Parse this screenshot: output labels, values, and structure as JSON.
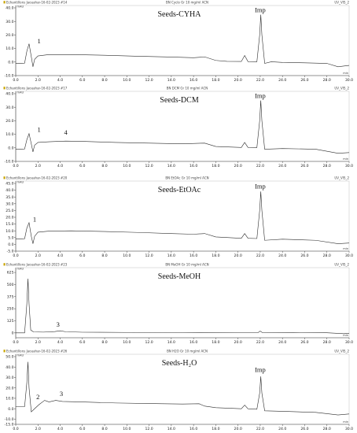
{
  "chart_data": [
    {
      "type": "line",
      "title": "Seeds-CYHA",
      "header_left": "Echantillons Jaouahar-16-02-2023 #14",
      "header_center": "BN Cyclo Gr 10 mg/ml ACN",
      "header_right": "UV_VIS_2",
      "y_unit": "mAU",
      "x_unit": "min",
      "xlim": [
        0.0,
        30.0
      ],
      "ylim": [
        -10.0,
        40.0
      ],
      "y_ticks": [
        "40.0",
        "30.0",
        "20.0",
        "10.0",
        "0.0",
        "-10.0"
      ],
      "x_ticks": [
        "0.0",
        "2.0",
        "4.0",
        "6.0",
        "8.0",
        "10.0",
        "12.0",
        "14.0",
        "16.0",
        "18.0",
        "20.0",
        "22.0",
        "24.0",
        "26.0",
        "28.0",
        "30.0"
      ],
      "baseline": [
        [
          0.0,
          -1.0
        ],
        [
          0.8,
          -0.8
        ],
        [
          1.0,
          8.0
        ],
        [
          1.2,
          13.5
        ],
        [
          1.4,
          4.0
        ],
        [
          1.55,
          -3.5
        ],
        [
          1.7,
          2.0
        ],
        [
          2.0,
          4.5
        ],
        [
          3.0,
          5.5
        ],
        [
          5.0,
          5.5
        ],
        [
          8.0,
          5.0
        ],
        [
          11.0,
          4.3
        ],
        [
          14.0,
          3.7
        ],
        [
          16.0,
          3.2
        ],
        [
          17.0,
          3.8
        ],
        [
          18.0,
          1.2
        ],
        [
          19.0,
          0.5
        ],
        [
          20.3,
          0.4
        ],
        [
          20.6,
          4.8
        ],
        [
          20.9,
          0.3
        ],
        [
          21.7,
          0.2
        ],
        [
          21.95,
          20.0
        ],
        [
          22.05,
          35.0
        ],
        [
          22.15,
          20.0
        ],
        [
          22.4,
          -1.0
        ],
        [
          23.0,
          0.2
        ],
        [
          24.0,
          -0.3
        ],
        [
          26.0,
          -0.6
        ],
        [
          28.0,
          -1.0
        ],
        [
          29.0,
          -3.5
        ],
        [
          30.0,
          -2.5
        ]
      ],
      "labels": [
        {
          "text": "1",
          "x": 2.1,
          "y": 12.0
        },
        {
          "text": "Imp",
          "x": 22.0,
          "y": 35.0
        }
      ]
    },
    {
      "type": "line",
      "title": "Seeds-DCM",
      "header_left": "Echantillons Jaouahar-16-02-2023 #17",
      "header_center": "BN DCM Gr 10 mg/ml ACN",
      "header_right": "UV_VIS_2",
      "y_unit": "mAU",
      "x_unit": "min",
      "xlim": [
        0.0,
        30.0
      ],
      "ylim": [
        -10.0,
        40.0
      ],
      "y_ticks": [
        "40.0",
        "30.0",
        "20.0",
        "10.0",
        "0.0",
        "-10.0"
      ],
      "x_ticks": [
        "0.0",
        "2.0",
        "4.0",
        "6.0",
        "8.0",
        "10.0",
        "12.0",
        "14.0",
        "16.0",
        "18.0",
        "20.0",
        "22.0",
        "24.0",
        "26.0",
        "28.0",
        "30.0"
      ],
      "baseline": [
        [
          0.0,
          -1.0
        ],
        [
          0.8,
          -0.8
        ],
        [
          1.0,
          6.0
        ],
        [
          1.2,
          10.5
        ],
        [
          1.4,
          3.0
        ],
        [
          1.55,
          -3.0
        ],
        [
          1.7,
          2.0
        ],
        [
          2.0,
          4.0
        ],
        [
          3.0,
          4.5
        ],
        [
          4.5,
          5.0
        ],
        [
          6.0,
          4.8
        ],
        [
          9.0,
          4.0
        ],
        [
          12.0,
          3.5
        ],
        [
          15.0,
          3.0
        ],
        [
          17.0,
          3.5
        ],
        [
          18.0,
          1.0
        ],
        [
          20.3,
          0.3
        ],
        [
          20.6,
          4.0
        ],
        [
          20.9,
          0.3
        ],
        [
          21.7,
          0.2
        ],
        [
          21.95,
          20.0
        ],
        [
          22.05,
          35.0
        ],
        [
          22.15,
          20.0
        ],
        [
          22.4,
          -1.0
        ],
        [
          24.0,
          -0.5
        ],
        [
          27.0,
          -1.0
        ],
        [
          29.0,
          -4.0
        ],
        [
          30.0,
          -3.5
        ]
      ],
      "labels": [
        {
          "text": "1",
          "x": 2.1,
          "y": 10.0
        },
        {
          "text": "4",
          "x": 4.5,
          "y": 8.0
        },
        {
          "text": "Imp",
          "x": 22.0,
          "y": 35.0
        }
      ]
    },
    {
      "type": "line",
      "title": "Seeds-EtOAc",
      "header_left": "Echantillons Jaouahar-16-02-2023 #20",
      "header_center": "BN EtOAc Gr 10 mg/ml ACN",
      "header_right": "UV_VIS_2",
      "y_unit": "mAU",
      "x_unit": "min",
      "xlim": [
        0.0,
        30.0
      ],
      "ylim": [
        -5.0,
        45.0
      ],
      "y_ticks": [
        "45.0",
        "40.0",
        "35.0",
        "30.0",
        "25.0",
        "20.0",
        "15.0",
        "10.0",
        "5.0",
        "0.0",
        "-5.0"
      ],
      "x_ticks": [
        "0.0",
        "2.0",
        "4.0",
        "6.0",
        "8.0",
        "10.0",
        "12.0",
        "14.0",
        "16.0",
        "18.0",
        "20.0",
        "22.0",
        "24.0",
        "26.0",
        "28.0",
        "30.0"
      ],
      "baseline": [
        [
          0.0,
          4.0
        ],
        [
          0.8,
          4.2
        ],
        [
          1.0,
          12.0
        ],
        [
          1.2,
          16.0
        ],
        [
          1.4,
          6.0
        ],
        [
          1.55,
          0.5
        ],
        [
          1.7,
          6.0
        ],
        [
          2.0,
          9.0
        ],
        [
          3.0,
          9.8
        ],
        [
          5.0,
          10.0
        ],
        [
          8.0,
          9.5
        ],
        [
          11.0,
          8.8
        ],
        [
          14.0,
          8.0
        ],
        [
          16.0,
          7.5
        ],
        [
          17.0,
          8.0
        ],
        [
          18.0,
          5.5
        ],
        [
          20.3,
          4.5
        ],
        [
          20.6,
          8.0
        ],
        [
          20.9,
          4.5
        ],
        [
          21.7,
          4.3
        ],
        [
          21.95,
          25.0
        ],
        [
          22.05,
          39.0
        ],
        [
          22.15,
          25.0
        ],
        [
          22.4,
          3.0
        ],
        [
          24.0,
          3.8
        ],
        [
          27.0,
          3.0
        ],
        [
          29.0,
          0.5
        ],
        [
          30.0,
          1.0
        ]
      ],
      "labels": [
        {
          "text": "1",
          "x": 1.7,
          "y": 15.0
        },
        {
          "text": "Imp",
          "x": 22.0,
          "y": 39.5
        }
      ]
    },
    {
      "type": "line",
      "title": "Seeds-MeOH",
      "header_left": "Echantillons Jaouahar-16-02-2023 #23",
      "header_center": "BN MeOH Gr 10 mg/ml ACN",
      "header_right": "UV_VIS_2",
      "y_unit": "mAU",
      "x_unit": "min",
      "xlim": [
        0.0,
        30.0
      ],
      "ylim": [
        -50.0,
        650.0
      ],
      "y_ticks": [
        "625",
        "500",
        "375",
        "250",
        "125",
        "0"
      ],
      "x_ticks": [
        "0.0",
        "2.0",
        "4.0",
        "6.0",
        "8.0",
        "10.0",
        "12.0",
        "14.0",
        "16.0",
        "18.0",
        "20.0",
        "22.0",
        "24.0",
        "26.0",
        "28.0",
        "30.0"
      ],
      "baseline": [
        [
          0.0,
          0.0
        ],
        [
          0.8,
          0.0
        ],
        [
          1.0,
          300.0
        ],
        [
          1.1,
          560.0
        ],
        [
          1.2,
          300.0
        ],
        [
          1.35,
          30.0
        ],
        [
          1.6,
          10.0
        ],
        [
          2.5,
          8.0
        ],
        [
          3.5,
          14.0
        ],
        [
          4.0,
          22.0
        ],
        [
          4.5,
          12.0
        ],
        [
          6.0,
          7.0
        ],
        [
          10.0,
          5.0
        ],
        [
          15.0,
          4.0
        ],
        [
          20.0,
          3.0
        ],
        [
          21.8,
          3.0
        ],
        [
          22.0,
          18.0
        ],
        [
          22.2,
          3.0
        ],
        [
          25.0,
          2.0
        ],
        [
          28.0,
          1.0
        ],
        [
          29.5,
          -8.0
        ],
        [
          30.0,
          -4.0
        ]
      ],
      "labels": [
        {
          "text": "3",
          "x": 3.8,
          "y": 40.0
        }
      ]
    },
    {
      "type": "line",
      "title": "Seeds-H₂O",
      "header_left": "Echantillons Jaouahar-16-02-2023 #26",
      "header_center": "BN H2O Gr 10 mg/ml ACN",
      "header_right": "UV_VIS_2",
      "y_unit": "mAU",
      "x_unit": "min",
      "xlim": [
        0.0,
        30.0
      ],
      "ylim": [
        -15.0,
        50.0
      ],
      "y_ticks": [
        "50.0",
        "40.0",
        "30.0",
        "20.0",
        "10.0",
        "0.0",
        "-10.0",
        "-15.0"
      ],
      "x_ticks": [
        "0.0",
        "2.0",
        "4.0",
        "6.0",
        "8.0",
        "10.0",
        "12.0",
        "14.0",
        "16.0",
        "18.0",
        "20.0",
        "22.0",
        "24.0",
        "26.0",
        "28.0",
        "30.0"
      ],
      "baseline": [
        [
          0.0,
          2.0
        ],
        [
          0.8,
          2.0
        ],
        [
          1.0,
          25.0
        ],
        [
          1.1,
          45.0
        ],
        [
          1.2,
          20.0
        ],
        [
          1.4,
          -3.0
        ],
        [
          1.7,
          0.0
        ],
        [
          2.1,
          4.0
        ],
        [
          2.6,
          8.0
        ],
        [
          3.0,
          6.5
        ],
        [
          3.6,
          8.0
        ],
        [
          4.2,
          7.0
        ],
        [
          6.0,
          6.5
        ],
        [
          9.0,
          5.5
        ],
        [
          12.0,
          5.0
        ],
        [
          15.0,
          4.5
        ],
        [
          16.5,
          4.8
        ],
        [
          17.0,
          2.5
        ],
        [
          18.0,
          1.0
        ],
        [
          20.3,
          0.0
        ],
        [
          20.6,
          3.5
        ],
        [
          20.9,
          0.0
        ],
        [
          21.7,
          -0.5
        ],
        [
          21.95,
          15.0
        ],
        [
          22.05,
          31.0
        ],
        [
          22.15,
          15.0
        ],
        [
          22.4,
          -2.0
        ],
        [
          24.0,
          -2.5
        ],
        [
          27.0,
          -3.5
        ],
        [
          29.0,
          -6.0
        ],
        [
          30.0,
          -5.0
        ]
      ],
      "labels": [
        {
          "text": "2",
          "x": 2.0,
          "y": 7.0
        },
        {
          "text": "3",
          "x": 4.1,
          "y": 10.0
        },
        {
          "text": "Imp",
          "x": 22.0,
          "y": 33.0
        }
      ]
    }
  ]
}
